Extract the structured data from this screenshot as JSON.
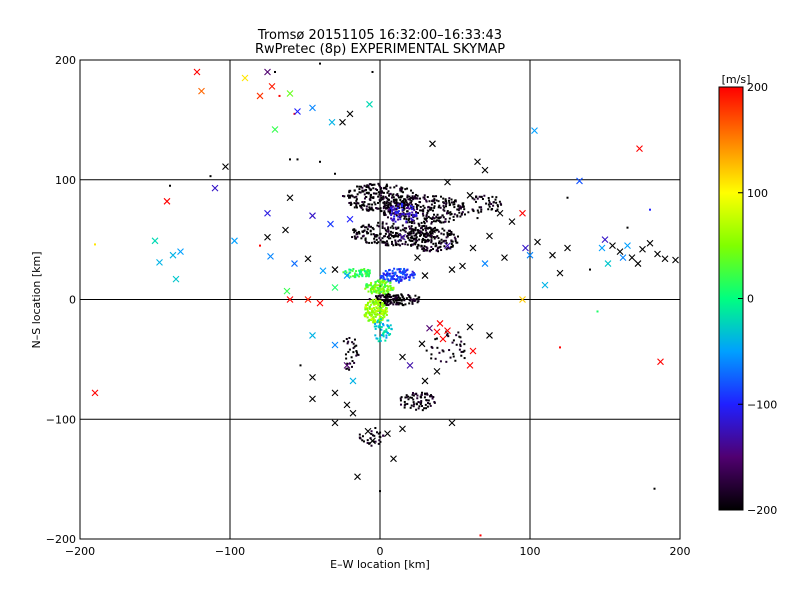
{
  "chart_data": {
    "type": "scatter",
    "title": "Tromsø 20151105 16:32:00–16:33:43",
    "subtitle": "RwPretec (8p) EXPERIMENTAL SKYMAP",
    "xlabel": "E–W location [km]",
    "ylabel": "N–S location [km]",
    "xlim": [
      -200,
      200
    ],
    "ylim": [
      -200,
      200
    ],
    "xticks": [
      -200,
      -100,
      0,
      100,
      200
    ],
    "yticks": [
      -200,
      -100,
      0,
      100,
      200
    ],
    "x_tick_labels": [
      "−200",
      "−100",
      "0",
      "100",
      "200"
    ],
    "y_tick_labels": [
      "−200",
      "−100",
      "0",
      "100",
      "200"
    ],
    "grid": true,
    "colorbar": {
      "label": "[m/s]",
      "range": [
        -200,
        200
      ],
      "ticks": [
        200,
        100,
        0,
        -100,
        -200
      ],
      "tick_labels": [
        "200",
        "100",
        "0",
        "−100",
        "−200"
      ],
      "colormap": [
        "#000000",
        "#500070",
        "#2020ff",
        "#00a0ff",
        "#00ff80",
        "#80ff00",
        "#ffff00",
        "#ff8000",
        "#ff0000"
      ]
    },
    "series": [
      {
        "marker": "x",
        "points": [
          {
            "x": -122,
            "y": 190,
            "v": 200
          },
          {
            "x": -119,
            "y": 174,
            "v": 160
          },
          {
            "x": -90,
            "y": 185,
            "v": 110
          },
          {
            "x": -75,
            "y": 190,
            "v": -150
          },
          {
            "x": -72,
            "y": 178,
            "v": 190
          },
          {
            "x": -80,
            "y": 170,
            "v": 180
          },
          {
            "x": -60,
            "y": 172,
            "v": 40
          },
          {
            "x": -45,
            "y": 160,
            "v": -60
          },
          {
            "x": -55,
            "y": 157,
            "v": -100
          },
          {
            "x": -70,
            "y": 142,
            "v": 20
          },
          {
            "x": -32,
            "y": 148,
            "v": -40
          },
          {
            "x": -25,
            "y": 148,
            "v": -200
          },
          {
            "x": -20,
            "y": 155,
            "v": -200
          },
          {
            "x": -7,
            "y": 163,
            "v": -20
          },
          {
            "x": 103,
            "y": 141,
            "v": -50
          },
          {
            "x": 173,
            "y": 126,
            "v": 200
          },
          {
            "x": -103,
            "y": 111,
            "v": -200
          },
          {
            "x": -110,
            "y": 93,
            "v": -120
          },
          {
            "x": -142,
            "y": 82,
            "v": 200
          },
          {
            "x": -150,
            "y": 49,
            "v": -20
          },
          {
            "x": -147,
            "y": 31,
            "v": -40
          },
          {
            "x": -138,
            "y": 37,
            "v": -40
          },
          {
            "x": -133,
            "y": 40,
            "v": -50
          },
          {
            "x": -136,
            "y": 17,
            "v": -30
          },
          {
            "x": -97,
            "y": 49,
            "v": -50
          },
          {
            "x": -75,
            "y": 72,
            "v": -110
          },
          {
            "x": -60,
            "y": 85,
            "v": -200
          },
          {
            "x": -45,
            "y": 70,
            "v": -120
          },
          {
            "x": -33,
            "y": 63,
            "v": -90
          },
          {
            "x": -20,
            "y": 67,
            "v": -100
          },
          {
            "x": -63,
            "y": 58,
            "v": -200
          },
          {
            "x": -75,
            "y": 52,
            "v": -200
          },
          {
            "x": -73,
            "y": 36,
            "v": -60
          },
          {
            "x": -57,
            "y": 30,
            "v": -70
          },
          {
            "x": -48,
            "y": 34,
            "v": -200
          },
          {
            "x": -38,
            "y": 24,
            "v": -50
          },
          {
            "x": -30,
            "y": 25,
            "v": -200
          },
          {
            "x": -62,
            "y": 7,
            "v": 20
          },
          {
            "x": -60,
            "y": 0,
            "v": 200
          },
          {
            "x": -48,
            "y": 0,
            "v": 190
          },
          {
            "x": -40,
            "y": -3,
            "v": 200
          },
          {
            "x": -30,
            "y": 10,
            "v": 10
          },
          {
            "x": -22,
            "y": 20,
            "v": -50
          },
          {
            "x": -45,
            "y": -30,
            "v": -40
          },
          {
            "x": -30,
            "y": -38,
            "v": -60
          },
          {
            "x": -22,
            "y": -55,
            "v": -150
          },
          {
            "x": -18,
            "y": -68,
            "v": -40
          },
          {
            "x": -45,
            "y": -65,
            "v": -200
          },
          {
            "x": -30,
            "y": -78,
            "v": -200
          },
          {
            "x": -45,
            "y": -83,
            "v": -200
          },
          {
            "x": -22,
            "y": -88,
            "v": -200
          },
          {
            "x": -18,
            "y": -95,
            "v": -200
          },
          {
            "x": -30,
            "y": -103,
            "v": -200
          },
          {
            "x": -8,
            "y": -110,
            "v": -200
          },
          {
            "x": -5,
            "y": -118,
            "v": -200
          },
          {
            "x": 5,
            "y": -112,
            "v": -200
          },
          {
            "x": 15,
            "y": -108,
            "v": -200
          },
          {
            "x": 9,
            "y": -133,
            "v": -200
          },
          {
            "x": -15,
            "y": -148,
            "v": -200
          },
          {
            "x": 48,
            "y": -103,
            "v": -200
          },
          {
            "x": -190,
            "y": -78,
            "v": 200
          },
          {
            "x": 187,
            "y": -52,
            "v": 200
          },
          {
            "x": 30,
            "y": -68,
            "v": -200
          },
          {
            "x": 38,
            "y": -60,
            "v": -200
          },
          {
            "x": 60,
            "y": -55,
            "v": 200
          },
          {
            "x": 62,
            "y": -43,
            "v": 200
          },
          {
            "x": 40,
            "y": -20,
            "v": 200
          },
          {
            "x": 45,
            "y": -26,
            "v": 200
          },
          {
            "x": 38,
            "y": -27,
            "v": 200
          },
          {
            "x": 42,
            "y": -33,
            "v": 200
          },
          {
            "x": 33,
            "y": -24,
            "v": -150
          },
          {
            "x": 28,
            "y": -37,
            "v": -200
          },
          {
            "x": 15,
            "y": -48,
            "v": -200
          },
          {
            "x": 20,
            "y": -55,
            "v": -130
          },
          {
            "x": 73,
            "y": -30,
            "v": -200
          },
          {
            "x": 60,
            "y": -23,
            "v": -200
          },
          {
            "x": 115,
            "y": 37,
            "v": -200
          },
          {
            "x": 125,
            "y": 43,
            "v": -200
          },
          {
            "x": 100,
            "y": 37,
            "v": -60
          },
          {
            "x": 97,
            "y": 43,
            "v": -120
          },
          {
            "x": 105,
            "y": 48,
            "v": -200
          },
          {
            "x": 133,
            "y": 99,
            "v": -80
          },
          {
            "x": 150,
            "y": 50,
            "v": -120
          },
          {
            "x": 148,
            "y": 43,
            "v": -50
          },
          {
            "x": 155,
            "y": 45,
            "v": -200
          },
          {
            "x": 160,
            "y": 40,
            "v": -200
          },
          {
            "x": 165,
            "y": 45,
            "v": -50
          },
          {
            "x": 168,
            "y": 35,
            "v": -200
          },
          {
            "x": 162,
            "y": 35,
            "v": -60
          },
          {
            "x": 172,
            "y": 30,
            "v": -200
          },
          {
            "x": 175,
            "y": 42,
            "v": -200
          },
          {
            "x": 180,
            "y": 47,
            "v": -200
          },
          {
            "x": 185,
            "y": 38,
            "v": -200
          },
          {
            "x": 190,
            "y": 34,
            "v": -200
          },
          {
            "x": 197,
            "y": 33,
            "v": -200
          },
          {
            "x": 152,
            "y": 30,
            "v": -30
          },
          {
            "x": 110,
            "y": 12,
            "v": -40
          },
          {
            "x": 120,
            "y": 22,
            "v": -200
          },
          {
            "x": 80,
            "y": 72,
            "v": -200
          },
          {
            "x": 95,
            "y": 72,
            "v": 200
          },
          {
            "x": 88,
            "y": 65,
            "v": -200
          },
          {
            "x": 73,
            "y": 53,
            "v": -200
          },
          {
            "x": 62,
            "y": 43,
            "v": -200
          },
          {
            "x": 83,
            "y": 35,
            "v": -200
          },
          {
            "x": 70,
            "y": 30,
            "v": -60
          },
          {
            "x": 55,
            "y": 28,
            "v": -200
          },
          {
            "x": 48,
            "y": 25,
            "v": -200
          },
          {
            "x": 25,
            "y": 35,
            "v": -200
          },
          {
            "x": 35,
            "y": 130,
            "v": -200
          },
          {
            "x": 65,
            "y": 115,
            "v": -200
          },
          {
            "x": 70,
            "y": 108,
            "v": -200
          },
          {
            "x": 60,
            "y": 87,
            "v": -200
          },
          {
            "x": 45,
            "y": 98,
            "v": -200
          },
          {
            "x": 45,
            "y": 45,
            "v": -130
          },
          {
            "x": 35,
            "y": 58,
            "v": -200
          },
          {
            "x": 15,
            "y": 52,
            "v": -130
          },
          {
            "x": 30,
            "y": 20,
            "v": -200
          },
          {
            "x": 95,
            "y": 0,
            "v": 120
          }
        ]
      },
      {
        "marker": "dot",
        "clusters": [
          {
            "cx": 0,
            "cy": 85,
            "rx": 25,
            "ry": 12,
            "n": 260,
            "v": -200
          },
          {
            "cx": 30,
            "cy": 75,
            "rx": 30,
            "ry": 12,
            "n": 260,
            "v": -200
          },
          {
            "cx": 10,
            "cy": 55,
            "rx": 30,
            "ry": 10,
            "n": 240,
            "v": -200
          },
          {
            "cx": 35,
            "cy": 50,
            "rx": 18,
            "ry": 10,
            "n": 140,
            "v": -200
          },
          {
            "cx": 15,
            "cy": 72,
            "rx": 10,
            "ry": 8,
            "n": 70,
            "v": -120
          },
          {
            "cx": 12,
            "cy": 20,
            "rx": 12,
            "ry": 6,
            "n": 110,
            "v": -90
          },
          {
            "cx": -15,
            "cy": 22,
            "rx": 10,
            "ry": 4,
            "n": 60,
            "v": 10
          },
          {
            "cx": 0,
            "cy": 10,
            "rx": 10,
            "ry": 6,
            "n": 110,
            "v": 40
          },
          {
            "cx": 10,
            "cy": 0,
            "rx": 18,
            "ry": 5,
            "n": 130,
            "v": -200
          },
          {
            "cx": -3,
            "cy": -10,
            "rx": 8,
            "ry": 10,
            "n": 150,
            "v": 60
          },
          {
            "cx": 2,
            "cy": -25,
            "rx": 6,
            "ry": 12,
            "n": 50,
            "v": -30
          },
          {
            "cx": 25,
            "cy": -85,
            "rx": 12,
            "ry": 8,
            "n": 70,
            "v": -200
          },
          {
            "cx": -5,
            "cy": -115,
            "rx": 10,
            "ry": 8,
            "n": 30,
            "v": -200
          },
          {
            "cx": -20,
            "cy": -45,
            "rx": 6,
            "ry": 15,
            "n": 30,
            "v": -200
          },
          {
            "cx": 45,
            "cy": -40,
            "rx": 15,
            "ry": 15,
            "n": 40,
            "v": -200
          },
          {
            "cx": 70,
            "cy": 80,
            "rx": 12,
            "ry": 8,
            "n": 45,
            "v": -200
          }
        ],
        "singles": [
          {
            "x": -70,
            "y": 190,
            "v": -200
          },
          {
            "x": -40,
            "y": 197,
            "v": -200
          },
          {
            "x": -5,
            "y": 190,
            "v": -200
          },
          {
            "x": -67,
            "y": 170,
            "v": 200
          },
          {
            "x": -57,
            "y": 155,
            "v": 200
          },
          {
            "x": -60,
            "y": 117,
            "v": -200
          },
          {
            "x": -113,
            "y": 103,
            "v": -200
          },
          {
            "x": -140,
            "y": 95,
            "v": -200
          },
          {
            "x": -55,
            "y": 117,
            "v": -200
          },
          {
            "x": -40,
            "y": 115,
            "v": -200
          },
          {
            "x": -190,
            "y": 46,
            "v": 110
          },
          {
            "x": 145,
            "y": -10,
            "v": 10
          },
          {
            "x": 120,
            "y": -40,
            "v": 200
          },
          {
            "x": 183,
            "y": -158,
            "v": -200
          },
          {
            "x": 67,
            "y": -197,
            "v": 200
          },
          {
            "x": 0,
            "y": -160,
            "v": -200
          },
          {
            "x": -53,
            "y": -55,
            "v": -200
          },
          {
            "x": 65,
            "y": 68,
            "v": -200
          },
          {
            "x": 125,
            "y": 85,
            "v": -200
          },
          {
            "x": 180,
            "y": 75,
            "v": -100
          },
          {
            "x": 165,
            "y": 60,
            "v": -200
          },
          {
            "x": 140,
            "y": 25,
            "v": -200
          },
          {
            "x": -30,
            "y": 105,
            "v": -200
          },
          {
            "x": -80,
            "y": 45,
            "v": 200
          }
        ]
      }
    ]
  }
}
